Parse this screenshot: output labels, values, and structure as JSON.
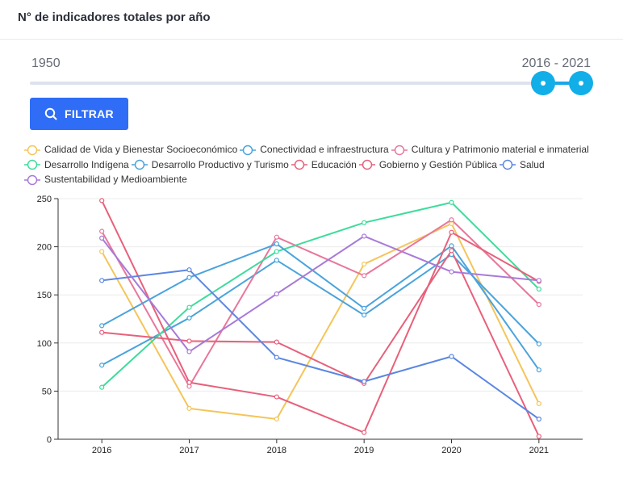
{
  "header": {
    "title": "N° de indicadores totales por año"
  },
  "range": {
    "min_label": "1950",
    "selected_label": "2016 - 2021"
  },
  "filter": {
    "label": "FILTRAR"
  },
  "chart_data": {
    "type": "line",
    "title": "",
    "xlabel": "",
    "ylabel": "",
    "categories": [
      "2016",
      "2017",
      "2018",
      "2019",
      "2020",
      "2021"
    ],
    "ylim": [
      0,
      250
    ],
    "yticks": [
      0,
      50,
      100,
      150,
      200,
      250
    ],
    "grid": true,
    "legend_position": "top",
    "series": [
      {
        "name": "Calidad de Vida y Bienestar Socioeconómico",
        "color": "#f4c55a",
        "values": [
          195,
          32,
          21,
          182,
          224,
          37
        ]
      },
      {
        "name": "Conectividad e infraestructura",
        "color": "#4aa3dc",
        "values": [
          77,
          126,
          186,
          129,
          192,
          99
        ]
      },
      {
        "name": "Cultura y Patrimonio material e inmaterial",
        "color": "#e8779b",
        "values": [
          216,
          55,
          210,
          170,
          228,
          140
        ]
      },
      {
        "name": "Desarrollo Indígena",
        "color": "#3ddc9b",
        "values": [
          54,
          137,
          195,
          225,
          246,
          156
        ]
      },
      {
        "name": "Desarrollo Productivo y Turismo",
        "color": "#4aa3dc",
        "values": [
          118,
          168,
          203,
          136,
          201,
          72
        ]
      },
      {
        "name": "Educación",
        "color": "#e8607a",
        "values": [
          111,
          102,
          101,
          58,
          196,
          3
        ]
      },
      {
        "name": "Gobierno y Gestión Pública",
        "color": "#e8607a",
        "values": [
          248,
          59,
          44,
          7,
          215,
          164
        ]
      },
      {
        "name": "Salud",
        "color": "#5b86e2",
        "values": [
          165,
          176,
          85,
          60,
          86,
          21
        ]
      },
      {
        "name": "Sustentabilidad y Medioambiente",
        "color": "#a87ad8",
        "values": [
          209,
          91,
          151,
          211,
          174,
          165
        ]
      }
    ]
  }
}
